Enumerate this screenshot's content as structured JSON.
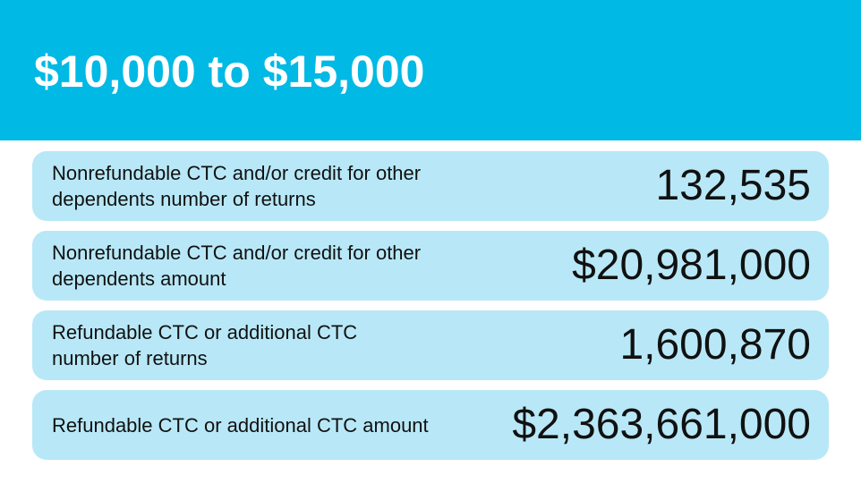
{
  "header": {
    "title": "$10,000 to $15,000",
    "background_color": "#00b9e4"
  },
  "rows": [
    {
      "label": "Nonrefundable CTC and/or credit for other dependents number of returns",
      "value": "132,535"
    },
    {
      "label": "Nonrefundable CTC and/or credit for other dependents amount",
      "value": "$20,981,000"
    },
    {
      "label": "Refundable CTC or additional CTC number of returns",
      "value": "1,600,870"
    },
    {
      "label": "Refundable CTC or additional CTC amount",
      "value": "$2,363,661,000"
    }
  ],
  "colors": {
    "row_background": "#b8e8f7",
    "text": "#111111"
  }
}
